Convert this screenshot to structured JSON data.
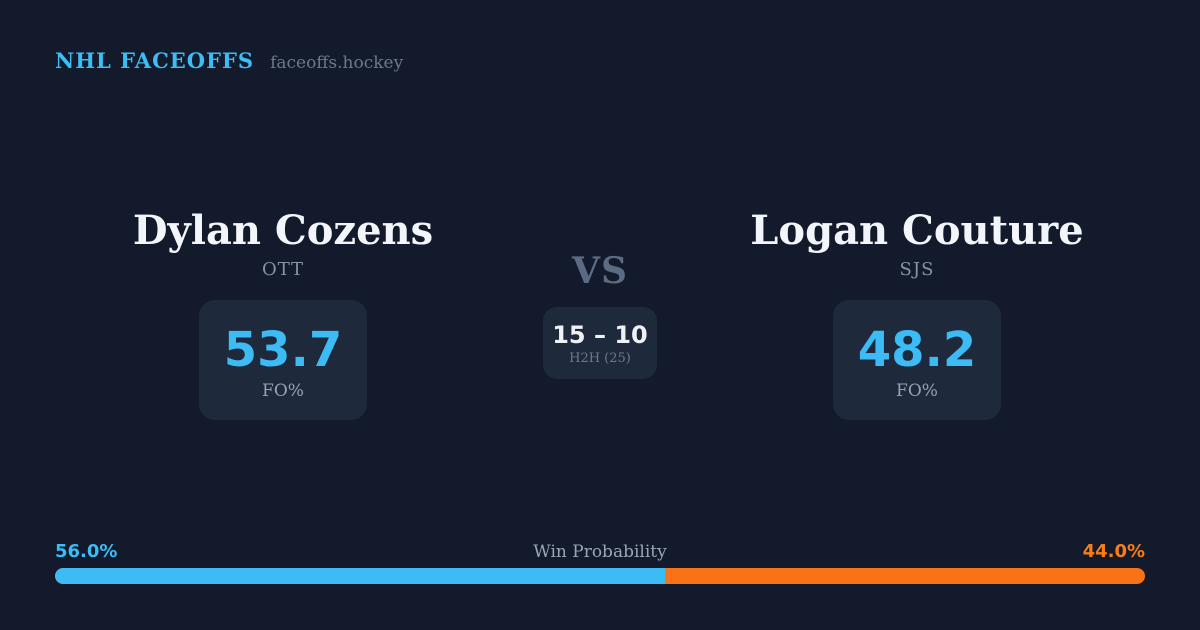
{
  "header": {
    "brand": "NHL FACEOFFS",
    "site": "faceoffs.hockey"
  },
  "matchup": {
    "left_player": {
      "name": "Dylan Cozens",
      "team": "OTT",
      "stat_value": "53.7",
      "stat_label": "FO%"
    },
    "right_player": {
      "name": "Logan Couture",
      "team": "SJS",
      "stat_value": "48.2",
      "stat_label": "FO%"
    },
    "vs_label": "VS",
    "h2h": {
      "score": "15 – 10",
      "label": "H2H (25)"
    }
  },
  "win_probability": {
    "title": "Win Probability",
    "left_label": "56.0%",
    "right_label": "44.0%",
    "left_pct": 56.0,
    "right_pct": 44.0
  },
  "colors": {
    "background": "#121A2B",
    "card": "#1E2A3C",
    "accent_blue": "#3CBBF5",
    "accent_orange": "#F97316",
    "brand_blue": "#3DBDF5",
    "name_white": "#F2F5F9",
    "muted_gray": "#8793A5"
  },
  "chart_data": {
    "type": "bar",
    "subtype": "stacked-horizontal",
    "title": "Win Probability",
    "categories": [
      "Win Probability"
    ],
    "series": [
      {
        "name": "Dylan Cozens (OTT)",
        "values": [
          56.0
        ],
        "color": "#3CBBF5"
      },
      {
        "name": "Logan Couture (SJS)",
        "values": [
          44.0
        ],
        "color": "#F97316"
      }
    ],
    "xlim": [
      0,
      100
    ],
    "grid": false,
    "legend_position": "none",
    "related_stats": {
      "fo_pct": {
        "Dylan Cozens": 53.7,
        "Logan Couture": 48.2
      },
      "h2h_record": {
        "wins_left": 15,
        "wins_right": 10,
        "total": 25
      }
    }
  }
}
